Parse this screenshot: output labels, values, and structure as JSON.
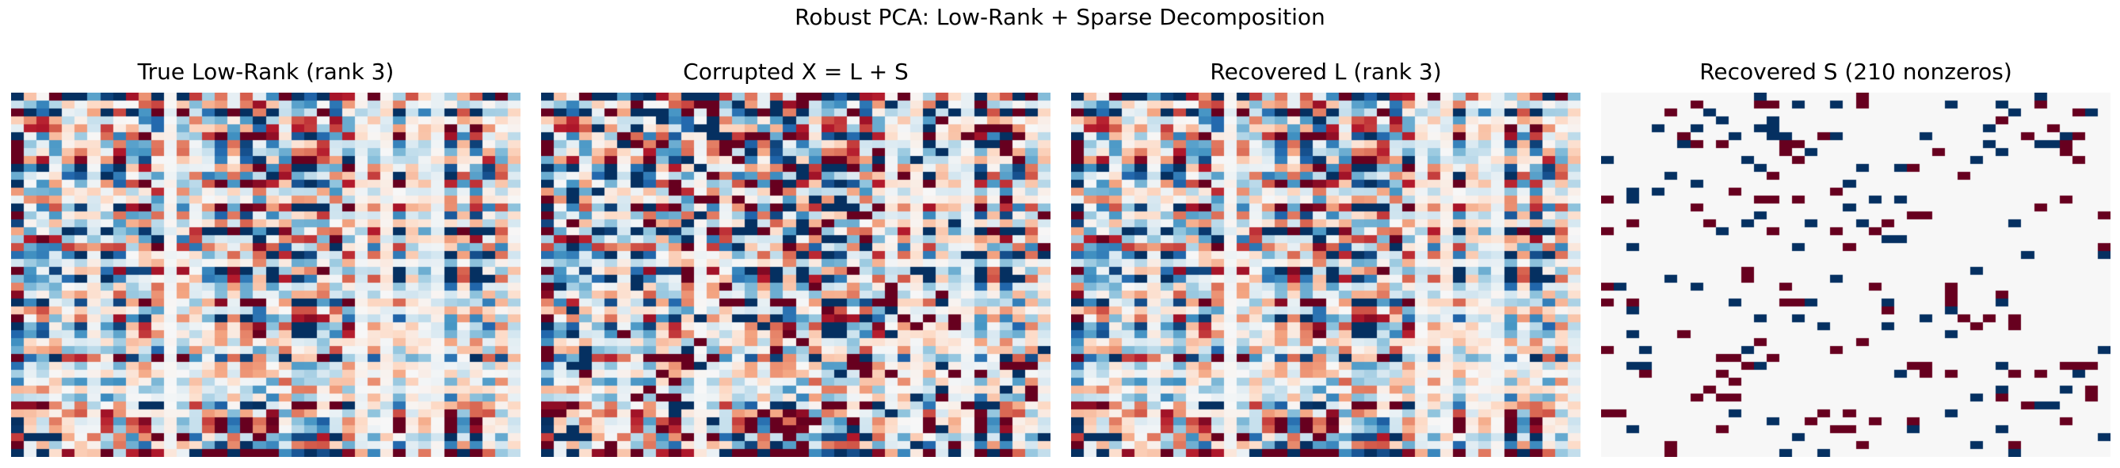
{
  "figure": {
    "suptitle": "Robust PCA: Low-Rank + Sparse Decomposition",
    "background": "#ffffff",
    "text_color": "#000000"
  },
  "chart_data": {
    "type": "heatmap",
    "title": "Robust PCA: Low-Rank + Sparse Decomposition",
    "layout": "single row of 4 heatmap panels, no axes ticks, no gridlines, no colorbar, no legend",
    "grid": {
      "rows": 46,
      "cols": 40
    },
    "colormap": {
      "name": "RdBu",
      "anchors": [
        "#67001f",
        "#b2182b",
        "#d6604d",
        "#f4a582",
        "#fddbc7",
        "#f7f7f7",
        "#d1e5f0",
        "#92c5de",
        "#4393c3",
        "#2166ac",
        "#053061"
      ]
    },
    "value_range": [
      -3,
      3
    ],
    "low_rank": {
      "rank": 3
    },
    "sparse": {
      "nonzeros": 210,
      "amplitude": 6,
      "value_range": [
        -6,
        6
      ]
    },
    "generator": {
      "seed_low_rank": 7,
      "seed_sparse": 13
    },
    "panels": [
      {
        "title": "True Low-Rank (rank 3)",
        "content": "L",
        "clim": [
          -3,
          3
        ]
      },
      {
        "title": "Corrupted X = L + S",
        "content": "L+S",
        "clim": [
          -3,
          3
        ]
      },
      {
        "title": "Recovered L (rank 3)",
        "content": "L",
        "clim": [
          -3,
          3
        ]
      },
      {
        "title": "Recovered S (210 nonzeros)",
        "content": "S",
        "clim": [
          -6,
          6
        ]
      }
    ]
  }
}
